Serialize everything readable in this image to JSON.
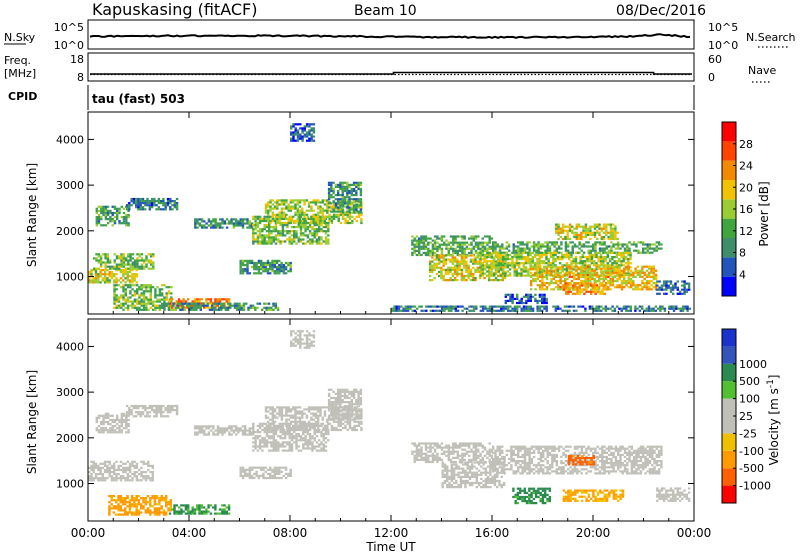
{
  "header": {
    "station": "Kapuskasing (fitACF)",
    "beam": "Beam 10",
    "date": "08/Dec/2016"
  },
  "strips": {
    "nsky_label": "N.Sky",
    "nsky_ticks": [
      "10^5",
      "10^0"
    ],
    "nsearch_label": "N.Search",
    "nsearch_ticks": [
      "10^5",
      "10^0"
    ],
    "freq_label": "Freq.",
    "freq_unit": "[MHz]",
    "freq_ticks": [
      "18",
      "8"
    ],
    "nave_label": "Nave",
    "nave_ticks": [
      "60",
      "0"
    ],
    "cpid_label": "CPID",
    "cpid_value": "tau (fast) 503"
  },
  "colors": {
    "power": [
      "#0000ff",
      "#2255bb",
      "#3d8f6a",
      "#3fa63f",
      "#9acd32",
      "#f2c200",
      "#f28a00",
      "#ff4400",
      "#ff0000"
    ],
    "velocity": [
      "#ff0000",
      "#ff6000",
      "#ff9a00",
      "#f0c000",
      "#c0c0b8",
      "#c0c0b8",
      "#50c030",
      "#2a8a50",
      "#3355bb",
      "#1a33cc"
    ]
  },
  "chart_data": [
    {
      "type": "heatmap",
      "title": "",
      "xlabel": "Time UT",
      "ylabel": "Slant Range [km]",
      "x_ticks": [
        "00:00",
        "04:00",
        "08:00",
        "12:00",
        "16:00",
        "20:00",
        "00:00"
      ],
      "x_range_hours": [
        0,
        24
      ],
      "y_ticks": [
        1000,
        2000,
        3000,
        4000
      ],
      "y_range_km": [
        180,
        4600
      ],
      "colorbar_label": "Power [dB]",
      "colorbar_ticks": [
        4,
        8,
        12,
        16,
        20,
        24,
        28
      ],
      "colorbar_range": [
        0,
        32
      ],
      "echo_regions": [
        {
          "t": [
            0.0,
            1.9
          ],
          "r": [
            850,
            1150
          ],
          "db": 18
        },
        {
          "t": [
            0.2,
            2.6
          ],
          "r": [
            1150,
            1500
          ],
          "db": 14
        },
        {
          "t": [
            0.3,
            1.6
          ],
          "r": [
            2100,
            2550
          ],
          "db": 11
        },
        {
          "t": [
            1.5,
            3.5
          ],
          "r": [
            2450,
            2700
          ],
          "db": 8
        },
        {
          "t": [
            1.0,
            3.3
          ],
          "r": [
            250,
            800
          ],
          "db": 14
        },
        {
          "t": [
            3.2,
            5.6
          ],
          "r": [
            300,
            500
          ],
          "db": 24
        },
        {
          "t": [
            2.8,
            7.5
          ],
          "r": [
            250,
            400
          ],
          "db": 10
        },
        {
          "t": [
            4.2,
            6.5
          ],
          "r": [
            2050,
            2250
          ],
          "db": 10
        },
        {
          "t": [
            6.0,
            8.0
          ],
          "r": [
            1050,
            1350
          ],
          "db": 10
        },
        {
          "t": [
            6.5,
            9.5
          ],
          "r": [
            1700,
            2300
          ],
          "db": 14
        },
        {
          "t": [
            7.0,
            10.8
          ],
          "r": [
            2150,
            2650
          ],
          "db": 16
        },
        {
          "t": [
            9.5,
            10.8
          ],
          "r": [
            2400,
            3050
          ],
          "db": 10
        },
        {
          "t": [
            8.0,
            8.9
          ],
          "r": [
            3950,
            4350
          ],
          "db": 6
        },
        {
          "t": [
            12.8,
            16.0
          ],
          "r": [
            1450,
            1900
          ],
          "db": 12
        },
        {
          "t": [
            13.5,
            16.5
          ],
          "r": [
            900,
            1450
          ],
          "db": 18
        },
        {
          "t": [
            16.0,
            22.7
          ],
          "r": [
            1500,
            1750
          ],
          "db": 12
        },
        {
          "t": [
            15.5,
            21.5
          ],
          "r": [
            1000,
            1500
          ],
          "db": 16
        },
        {
          "t": [
            17.5,
            22.5
          ],
          "r": [
            700,
            1200
          ],
          "db": 20
        },
        {
          "t": [
            18.5,
            21.0
          ],
          "r": [
            1800,
            2150
          ],
          "db": 18
        },
        {
          "t": [
            18.8,
            20.5
          ],
          "r": [
            600,
            850
          ],
          "db": 22
        },
        {
          "t": [
            16.5,
            18.2
          ],
          "r": [
            400,
            600
          ],
          "db": 6
        },
        {
          "t": [
            22.5,
            23.8
          ],
          "r": [
            600,
            900
          ],
          "db": 7
        },
        {
          "t": [
            12.0,
            23.8
          ],
          "r": [
            230,
            330
          ],
          "db": 8
        }
      ]
    },
    {
      "type": "heatmap",
      "title": "",
      "xlabel": "Time UT",
      "ylabel": "Slant Range [km]",
      "x_ticks": [
        "00:00",
        "04:00",
        "08:00",
        "12:00",
        "16:00",
        "20:00",
        "00:00"
      ],
      "x_range_hours": [
        0,
        24
      ],
      "y_ticks": [
        1000,
        2000,
        3000,
        4000
      ],
      "y_range_km": [
        180,
        4600
      ],
      "colorbar_label": "Velocity [m s^-1]",
      "colorbar_ticks": [
        -1000,
        -500,
        -100,
        -25,
        25,
        100,
        500,
        1000
      ],
      "echo_regions": [
        {
          "t": [
            0.0,
            2.6
          ],
          "r": [
            1050,
            1500
          ],
          "v": 0
        },
        {
          "t": [
            0.3,
            1.6
          ],
          "r": [
            2100,
            2550
          ],
          "v": 0
        },
        {
          "t": [
            1.5,
            3.5
          ],
          "r": [
            2450,
            2700
          ],
          "v": 0
        },
        {
          "t": [
            0.8,
            3.3
          ],
          "r": [
            300,
            750
          ],
          "v": -200
        },
        {
          "t": [
            3.2,
            5.6
          ],
          "r": [
            320,
            520
          ],
          "v": 150
        },
        {
          "t": [
            4.2,
            6.5
          ],
          "r": [
            2050,
            2250
          ],
          "v": 0
        },
        {
          "t": [
            6.0,
            8.0
          ],
          "r": [
            1100,
            1350
          ],
          "v": 0
        },
        {
          "t": [
            6.5,
            9.5
          ],
          "r": [
            1700,
            2300
          ],
          "v": 0
        },
        {
          "t": [
            7.0,
            10.8
          ],
          "r": [
            2150,
            2650
          ],
          "v": 0
        },
        {
          "t": [
            9.5,
            10.8
          ],
          "r": [
            2400,
            3050
          ],
          "v": 0
        },
        {
          "t": [
            8.0,
            8.9
          ],
          "r": [
            3950,
            4350
          ],
          "v": 0
        },
        {
          "t": [
            12.8,
            16.0
          ],
          "r": [
            1450,
            1900
          ],
          "v": 0
        },
        {
          "t": [
            14.0,
            16.5
          ],
          "r": [
            900,
            1450
          ],
          "v": 0
        },
        {
          "t": [
            16.0,
            22.7
          ],
          "r": [
            1200,
            1800
          ],
          "v": 0
        },
        {
          "t": [
            18.8,
            21.2
          ],
          "r": [
            600,
            850
          ],
          "v": -150
        },
        {
          "t": [
            16.8,
            18.3
          ],
          "r": [
            550,
            900
          ],
          "v": 200
        },
        {
          "t": [
            19.0,
            20.0
          ],
          "r": [
            1400,
            1600
          ],
          "v": -600
        },
        {
          "t": [
            22.5,
            23.8
          ],
          "r": [
            600,
            900
          ],
          "v": 0
        }
      ]
    }
  ]
}
